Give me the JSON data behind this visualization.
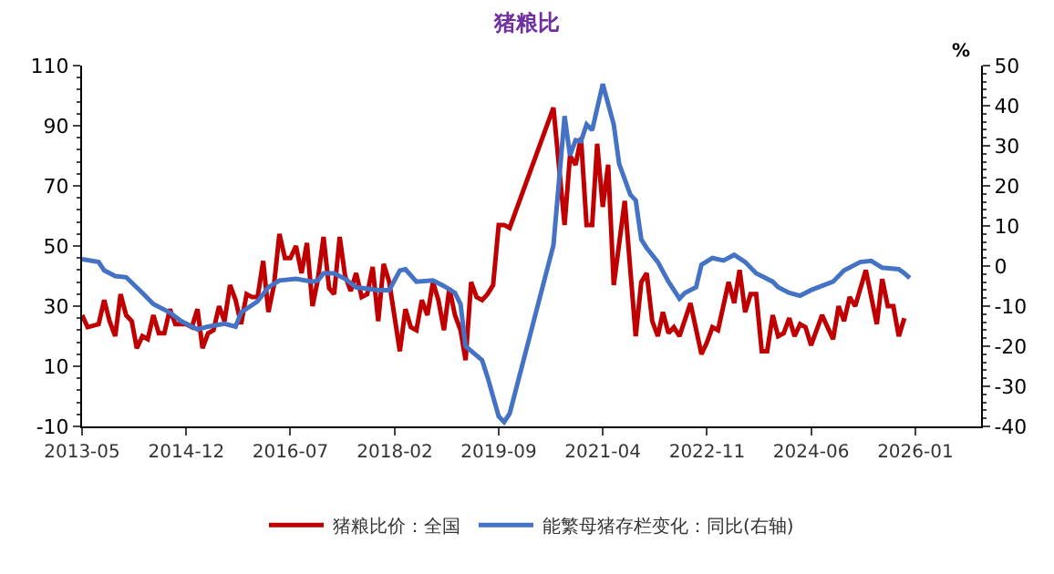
{
  "chart_data": {
    "type": "line",
    "title": "猪粮比",
    "y2label": "%",
    "xlim": [
      "2013-05",
      "2027-01"
    ],
    "xticks": [
      "2013-05",
      "2014-12",
      "2016-07",
      "2018-02",
      "2019-09",
      "2021-04",
      "2022-11",
      "2024-06",
      "2026-01"
    ],
    "ylim": [
      -10,
      110
    ],
    "yticks": [
      -10,
      10,
      30,
      50,
      70,
      90,
      110
    ],
    "y2lim": [
      -40,
      50
    ],
    "y2ticks": [
      -40,
      -30,
      -20,
      -10,
      0,
      10,
      20,
      30,
      40,
      50
    ],
    "legend": "bottom",
    "line_style": "solid",
    "marker": "none",
    "series": [
      {
        "name": "猪粮比价：全国",
        "color": "#c00000",
        "x": [
          "2013-05",
          "2013-06",
          "2013-08",
          "2013-09",
          "2013-10",
          "2013-11",
          "2013-12",
          "2014-01",
          "2014-02",
          "2014-03",
          "2014-04",
          "2014-05",
          "2014-06",
          "2014-07",
          "2014-08",
          "2014-09",
          "2014-10",
          "2014-12",
          "2015-01",
          "2015-02",
          "2015-03",
          "2015-04",
          "2015-05",
          "2015-06",
          "2015-07",
          "2015-08",
          "2015-09",
          "2015-10",
          "2015-11",
          "2015-12",
          "2016-01",
          "2016-02",
          "2016-03",
          "2016-04",
          "2016-05",
          "2016-06",
          "2016-07",
          "2016-08",
          "2016-09",
          "2016-10",
          "2016-11",
          "2016-12",
          "2017-01",
          "2017-02",
          "2017-03",
          "2017-04",
          "2017-05",
          "2017-06",
          "2017-07",
          "2017-08",
          "2017-09",
          "2017-10",
          "2017-11",
          "2017-12",
          "2018-01",
          "2018-03",
          "2018-04",
          "2018-05",
          "2018-06",
          "2018-07",
          "2018-08",
          "2018-09",
          "2018-10",
          "2018-11",
          "2018-12",
          "2019-01",
          "2019-02",
          "2019-03",
          "2019-04",
          "2019-05",
          "2019-06",
          "2019-07",
          "2019-08",
          "2019-09",
          "2019-10",
          "2019-11",
          "2020-07",
          "2020-09",
          "2020-10",
          "2020-11",
          "2020-12",
          "2021-01",
          "2021-02",
          "2021-03",
          "2021-04",
          "2021-05",
          "2021-06",
          "2021-08",
          "2021-10",
          "2021-11",
          "2021-12",
          "2022-01",
          "2022-02",
          "2022-03",
          "2022-04",
          "2022-05",
          "2022-06",
          "2022-08",
          "2022-10",
          "2022-11",
          "2022-12",
          "2023-01",
          "2023-03",
          "2023-04",
          "2023-05",
          "2023-06",
          "2023-07",
          "2023-08",
          "2023-09",
          "2023-10",
          "2023-11",
          "2023-12",
          "2024-01",
          "2024-02",
          "2024-03",
          "2024-04",
          "2024-05",
          "2024-06",
          "2024-08",
          "2024-10",
          "2024-11",
          "2024-12",
          "2025-01",
          "2025-02",
          "2025-04",
          "2025-06",
          "2025-07",
          "2025-08",
          "2025-09",
          "2025-10",
          "2025-11"
        ],
        "values": [
          27,
          23,
          24,
          32,
          25,
          20,
          34,
          27,
          25,
          16,
          20,
          19,
          27,
          21,
          21,
          29,
          24,
          24,
          23,
          29,
          16,
          21,
          22,
          30,
          25,
          37,
          32,
          24,
          34,
          33,
          33,
          45,
          28,
          37,
          54,
          46,
          46,
          50,
          41,
          51,
          30,
          39,
          53,
          36,
          34,
          53,
          40,
          35,
          41,
          33,
          34,
          43,
          25,
          44,
          38,
          15,
          29,
          23,
          22,
          32,
          27,
          38,
          32,
          22,
          36,
          27,
          22,
          12,
          38,
          33,
          32,
          34,
          37,
          57,
          57,
          56,
          96,
          57,
          80,
          77,
          86,
          57,
          57,
          84,
          63,
          77,
          37,
          65,
          20,
          38,
          41,
          25,
          20,
          28,
          21,
          23,
          20,
          31,
          14,
          18,
          23,
          22,
          38,
          31,
          42,
          28,
          34,
          34,
          15,
          15,
          27,
          20,
          21,
          26,
          20,
          24,
          23,
          17,
          27,
          19,
          30,
          25,
          33,
          30,
          42,
          24,
          39,
          30,
          30,
          20,
          26
        ]
      },
      {
        "name": "能繁母猪存栏变化：同比(右轴)",
        "color": "#4472c4",
        "axis": "y2",
        "x": [
          "2013-05",
          "2013-08",
          "2013-09",
          "2013-11",
          "2014-01",
          "2014-04",
          "2014-06",
          "2014-09",
          "2014-11",
          "2015-02",
          "2015-04",
          "2015-07",
          "2015-09",
          "2015-10",
          "2016-01",
          "2016-03",
          "2016-05",
          "2016-08",
          "2016-11",
          "2016-12",
          "2017-01",
          "2017-03",
          "2017-05",
          "2017-07",
          "2017-11",
          "2018-01",
          "2018-03",
          "2018-04",
          "2018-06",
          "2018-09",
          "2018-11",
          "2019-01",
          "2019-02",
          "2019-03",
          "2019-06",
          "2019-07",
          "2019-09",
          "2019-10",
          "2019-11",
          "2020-07",
          "2020-09",
          "2020-10",
          "2020-11",
          "2020-12",
          "2021-01",
          "2021-02",
          "2021-04",
          "2021-06",
          "2021-07",
          "2021-09",
          "2021-10",
          "2021-11",
          "2021-12",
          "2022-02",
          "2022-04",
          "2022-06",
          "2022-07",
          "2022-09",
          "2022-10",
          "2022-12",
          "2023-02",
          "2023-04",
          "2023-06",
          "2023-08",
          "2023-11",
          "2023-12",
          "2024-02",
          "2024-04",
          "2024-06",
          "2024-10",
          "2024-12",
          "2025-03",
          "2025-05",
          "2025-07",
          "2025-10",
          "2025-11",
          "2025-12"
        ],
        "values": [
          1.7,
          1.0,
          -1.1,
          -2.5,
          -2.8,
          -6.7,
          -9.5,
          -11.6,
          -13.7,
          -15.8,
          -15.1,
          -14.4,
          -15.1,
          -11.6,
          -8.8,
          -5.3,
          -3.6,
          -3.2,
          -3.9,
          -3.6,
          -1.8,
          -1.8,
          -3.2,
          -5.3,
          -6,
          -6,
          -1.1,
          -0.8,
          -3.9,
          -3.6,
          -5,
          -6.7,
          -9.5,
          -20,
          -23.5,
          -27.7,
          -37.5,
          -38.9,
          -36.8,
          5.2,
          37.4,
          27.6,
          31.4,
          31.1,
          35.3,
          33.9,
          45.4,
          35.3,
          25.5,
          17.8,
          16.4,
          6.6,
          4.5,
          1,
          -3.9,
          -8.1,
          -6.7,
          -5.3,
          0.3,
          2,
          1.4,
          2.8,
          1,
          -1.8,
          -3.9,
          -5.3,
          -6.7,
          -7.4,
          -6,
          -3.9,
          -1.1,
          1,
          1.3,
          -0.4,
          -0.8,
          -1.8,
          -3
        ]
      }
    ]
  }
}
